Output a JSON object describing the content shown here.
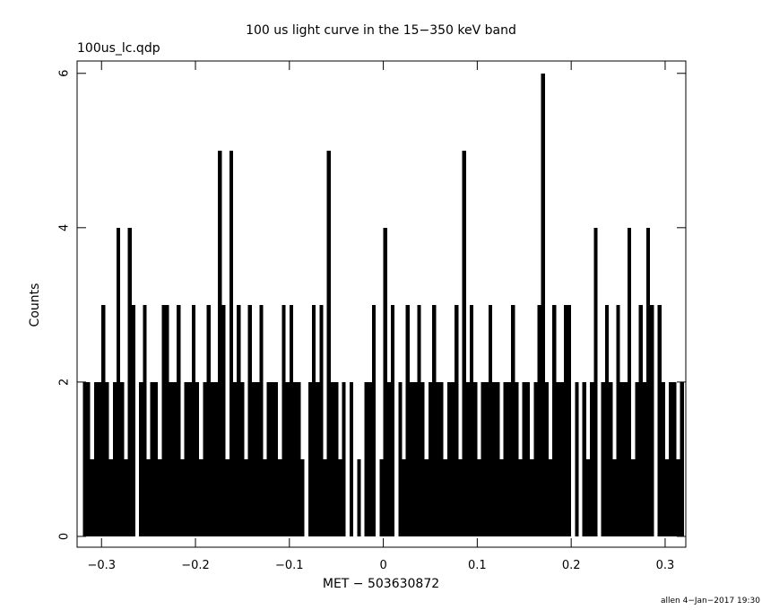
{
  "chart_data": {
    "type": "histogram",
    "title": "100 us light curve in the 15−350 keV band",
    "subtitle": "100us_lc.qdp",
    "xlabel": "MET − 503630872",
    "ylabel": "Counts",
    "footer": "allen  4−Jan−2017 19:30",
    "color": "#000000",
    "xlim": [
      -0.326,
      0.322
    ],
    "ylim": [
      -0.14,
      6.16
    ],
    "xticks": [
      {
        "value": -0.3,
        "label": "−0.3"
      },
      {
        "value": -0.2,
        "label": "−0.2"
      },
      {
        "value": -0.1,
        "label": "−0.1"
      },
      0,
      0.1,
      0.2,
      0.3
    ],
    "yticks": [
      0,
      2,
      4,
      6
    ],
    "x": [
      -0.318,
      -0.314,
      -0.31,
      -0.306,
      -0.302,
      -0.298,
      -0.294,
      -0.29,
      -0.286,
      -0.282,
      -0.278,
      -0.274,
      -0.27,
      -0.266,
      -0.262,
      -0.258,
      -0.254,
      -0.25,
      -0.246,
      -0.242,
      -0.238,
      -0.234,
      -0.23,
      -0.226,
      -0.222,
      -0.218,
      -0.214,
      -0.21,
      -0.206,
      -0.202,
      -0.198,
      -0.194,
      -0.19,
      -0.186,
      -0.182,
      -0.178,
      -0.174,
      -0.17,
      -0.166,
      -0.162,
      -0.158,
      -0.154,
      -0.15,
      -0.146,
      -0.142,
      -0.138,
      -0.134,
      -0.13,
      -0.126,
      -0.122,
      -0.118,
      -0.114,
      -0.11,
      -0.106,
      -0.102,
      -0.098,
      -0.094,
      -0.09,
      -0.086,
      -0.082,
      -0.078,
      -0.074,
      -0.07,
      -0.066,
      -0.062,
      -0.058,
      -0.054,
      -0.05,
      -0.046,
      -0.042,
      -0.038,
      -0.034,
      -0.03,
      -0.026,
      -0.022,
      -0.018,
      -0.014,
      -0.01,
      -0.006,
      -0.002,
      0.002,
      0.006,
      0.01,
      0.014,
      0.018,
      0.022,
      0.026,
      0.03,
      0.034,
      0.038,
      0.042,
      0.046,
      0.05,
      0.054,
      0.058,
      0.062,
      0.066,
      0.07,
      0.074,
      0.078,
      0.082,
      0.086,
      0.09,
      0.094,
      0.098,
      0.102,
      0.106,
      0.11,
      0.114,
      0.118,
      0.122,
      0.126,
      0.13,
      0.134,
      0.138,
      0.142,
      0.146,
      0.15,
      0.154,
      0.158,
      0.162,
      0.166,
      0.17,
      0.174,
      0.178,
      0.182,
      0.186,
      0.19,
      0.194,
      0.198,
      0.202,
      0.206,
      0.21,
      0.214,
      0.218,
      0.222,
      0.226,
      0.23,
      0.234,
      0.238,
      0.242,
      0.246,
      0.25,
      0.254,
      0.258,
      0.262,
      0.266,
      0.27,
      0.274,
      0.278,
      0.282,
      0.286,
      0.29,
      0.294,
      0.298,
      0.302,
      0.306,
      0.31,
      0.314,
      0.318
    ],
    "values": [
      2,
      2,
      1,
      2,
      2,
      3,
      2,
      1,
      2,
      4,
      2,
      1,
      4,
      3,
      0,
      2,
      3,
      1,
      2,
      2,
      1,
      3,
      3,
      2,
      2,
      3,
      1,
      2,
      2,
      3,
      2,
      1,
      2,
      3,
      2,
      2,
      5,
      3,
      1,
      5,
      2,
      3,
      2,
      1,
      3,
      2,
      2,
      3,
      1,
      2,
      2,
      2,
      1,
      3,
      2,
      3,
      2,
      2,
      1,
      0,
      2,
      3,
      2,
      3,
      1,
      5,
      2,
      2,
      1,
      2,
      0,
      2,
      0,
      1,
      0,
      2,
      2,
      3,
      0,
      1,
      4,
      2,
      3,
      0,
      2,
      1,
      3,
      2,
      2,
      3,
      2,
      1,
      2,
      3,
      2,
      2,
      1,
      2,
      2,
      3,
      1,
      5,
      2,
      3,
      2,
      1,
      2,
      2,
      3,
      2,
      2,
      1,
      2,
      2,
      3,
      2,
      1,
      2,
      2,
      1,
      2,
      3,
      6,
      2,
      1,
      3,
      2,
      2,
      3,
      3,
      0,
      2,
      0,
      2,
      1,
      2,
      4,
      0,
      2,
      3,
      2,
      1,
      3,
      2,
      2,
      4,
      1,
      2,
      3,
      2,
      4,
      3,
      0,
      3,
      2,
      1,
      2,
      2,
      1,
      2
    ]
  }
}
